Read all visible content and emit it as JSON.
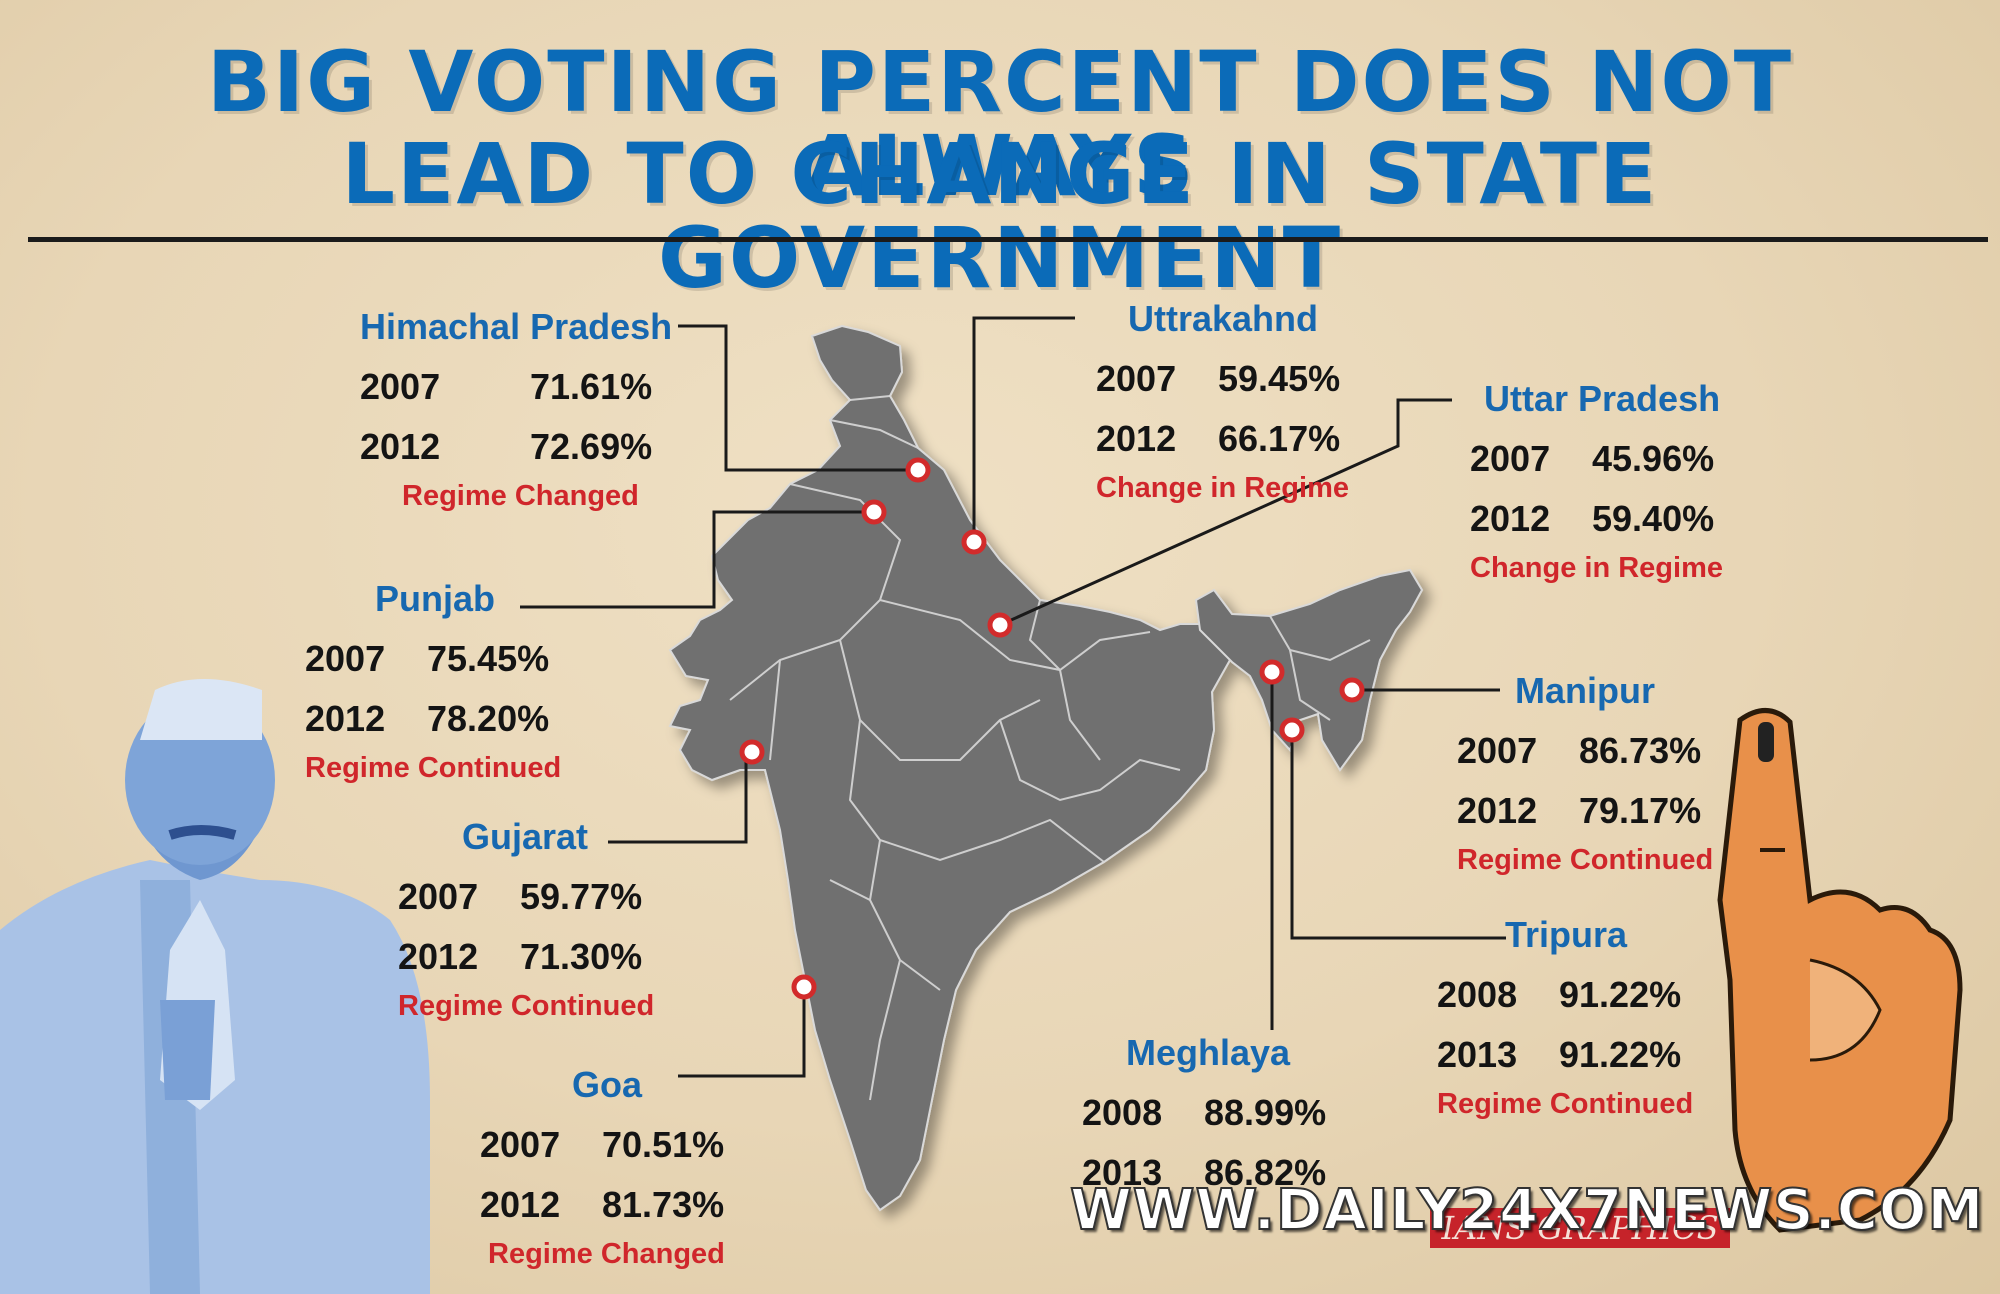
{
  "title": {
    "line1": "BIG VOTING PERCENT DOES NOT ALWAYS",
    "line2": "LEAD TO CHANGE IN STATE GOVERNMENT"
  },
  "states": {
    "himachal": {
      "name": "Himachal Pradesh",
      "y1": "2007",
      "v1": "71.61%",
      "y2": "2012",
      "v2": "72.69%",
      "note": "Regime Changed"
    },
    "uttarakhand": {
      "name": "Uttrakahnd",
      "y1": "2007",
      "v1": "59.45%",
      "y2": "2012",
      "v2": "66.17%",
      "note": "Change in Regime"
    },
    "uttar_pradesh": {
      "name": "Uttar Pradesh",
      "y1": "2007",
      "v1": "45.96%",
      "y2": "2012",
      "v2": "59.40%",
      "note": "Change in Regime"
    },
    "punjab": {
      "name": "Punjab",
      "y1": "2007",
      "v1": "75.45%",
      "y2": "2012",
      "v2": "78.20%",
      "note": "Regime Continued"
    },
    "manipur": {
      "name": "Manipur",
      "y1": "2007",
      "v1": "86.73%",
      "y2": "2012",
      "v2": "79.17%",
      "note": "Regime Continued"
    },
    "gujarat": {
      "name": "Gujarat",
      "y1": "2007",
      "v1": "59.77%",
      "y2": "2012",
      "v2": "71.30%",
      "note": "Regime Continued"
    },
    "tripura": {
      "name": "Tripura",
      "y1": "2008",
      "v1": "91.22%",
      "y2": "2013",
      "v2": "91.22%",
      "note": "Regime Continued"
    },
    "meghalaya": {
      "name": "Meghlaya",
      "y1": "2008",
      "v1": "88.99%",
      "y2": "2013",
      "v2": "86.82%",
      "note": ""
    },
    "goa": {
      "name": "Goa",
      "y1": "2007",
      "v1": "70.51%",
      "y2": "2012",
      "v2": "81.73%",
      "note": "Regime Changed"
    }
  },
  "watermark": "WWW.DAILY24X7NEWS.COM",
  "credit": "IANS GRAPHICS",
  "colors": {
    "title": "#0b6bb8",
    "state_name": "#1768b0",
    "note": "#d0262b",
    "map": "#6f6f6f",
    "background": "#e8d6b6"
  },
  "icons": [
    "india-map",
    "politician-illustration",
    "inked-finger-illustration",
    "location-marker-icon"
  ]
}
